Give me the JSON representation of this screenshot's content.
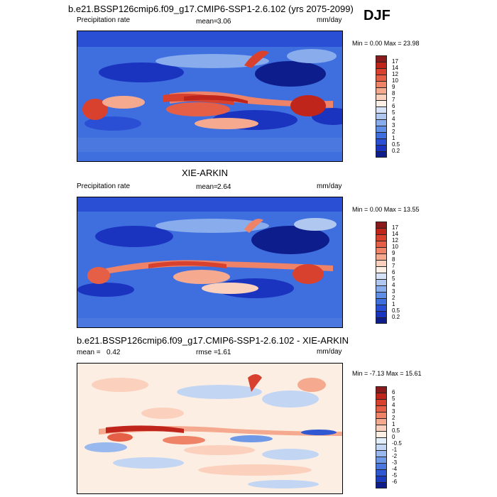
{
  "season": "DJF",
  "panels": [
    {
      "title": "b.e21.BSSP126cmip6.f09_g17.CMIP6-SSP1-2.6.102 (yrs 2075-2099)",
      "left_label": "Precipitation rate",
      "mean_label": "mean=",
      "mean_value": "3.06",
      "units": "mm/day",
      "min_max": "Min =   0.00 Max =  23.98",
      "colorbar_labels": [
        "17",
        "14",
        "12",
        "10",
        "9",
        "8",
        "7",
        "6",
        "5",
        "4",
        "3",
        "2",
        "1",
        "0.5",
        "0.2"
      ]
    },
    {
      "title": "XIE-ARKIN",
      "left_label": "Precipitation rate",
      "mean_label": "mean=",
      "mean_value": "2.64",
      "units": "mm/day",
      "min_max": "Min =   0.00 Max =  13.55",
      "colorbar_labels": [
        "17",
        "14",
        "12",
        "10",
        "9",
        "8",
        "7",
        "6",
        "5",
        "4",
        "3",
        "2",
        "1",
        "0.5",
        "0.2"
      ]
    },
    {
      "title": "b.e21.BSSP126cmip6.f09_g17.CMIP6-SSP1-2.6.102 - XIE-ARKIN",
      "mean_label": "mean =",
      "mean_value": "0.42",
      "rmse_label": "rmse =",
      "rmse_value": "1.61",
      "units": "mm/day",
      "min_max": "Min =  -7.13 Max =  15.61",
      "colorbar_labels": [
        "6",
        "5",
        "4",
        "3",
        "2",
        "1",
        "0.5",
        "0",
        "-0.5",
        "-1",
        "-2",
        "-3",
        "-4",
        "-5",
        "-6"
      ]
    }
  ],
  "colors": {
    "precip": [
      "#8b1a1a",
      "#c0251c",
      "#d8412e",
      "#e45f46",
      "#ee8368",
      "#f5a98e",
      "#fbd0bd",
      "#fbefe6",
      "#d5e2f7",
      "#b0c8f0",
      "#88acec",
      "#608de6",
      "#3f6fdf",
      "#2b4fd4",
      "#1b34bf",
      "#0e1d8c"
    ],
    "diff": [
      "#8b1a1a",
      "#c0251c",
      "#d8412e",
      "#e45f46",
      "#ee8368",
      "#f5a98e",
      "#fbd0bd",
      "#fdeee4",
      "#e3eefb",
      "#c2d6f4",
      "#99b9ee",
      "#6f98e6",
      "#4a78de",
      "#2f58d2",
      "#1d3cbd",
      "#0e1d8c"
    ]
  }
}
